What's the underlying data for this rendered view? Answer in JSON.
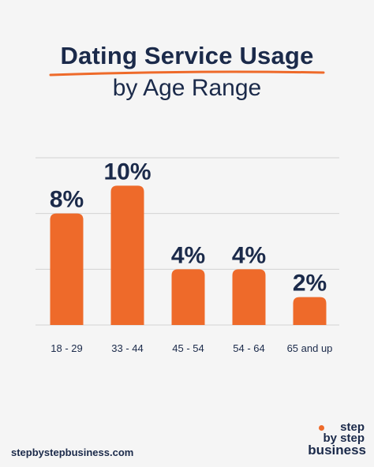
{
  "header": {
    "title": "Dating Service Usage",
    "subtitle": "by Age Range"
  },
  "colors": {
    "accent": "#ee6a2a",
    "text": "#1b2a4a",
    "grid": "#d3d3d3",
    "background": "#f5f5f5"
  },
  "chart_data": {
    "type": "bar",
    "title": "Dating Service Usage by Age Range",
    "categories": [
      "18 - 29",
      "33 - 44",
      "45 - 54",
      "54 - 64",
      "65 and up"
    ],
    "values": [
      8,
      10,
      4,
      4,
      2
    ],
    "value_labels": [
      "8%",
      "10%",
      "4%",
      "4%",
      "2%"
    ],
    "ylim": [
      0,
      12
    ],
    "grid": true,
    "legend": "none"
  },
  "footer": {
    "url": "stepbystepbusiness.com",
    "logo_line1": "step",
    "logo_line2": "by step",
    "logo_line3": "business"
  }
}
